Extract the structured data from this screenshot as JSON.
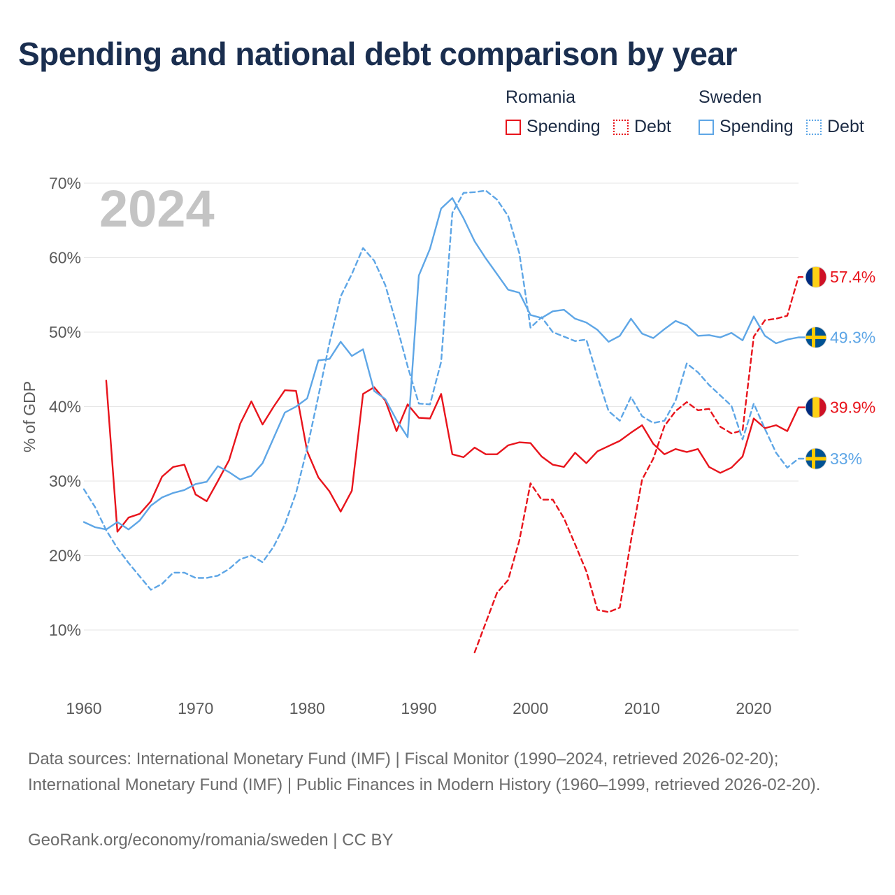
{
  "title": "Spending and national debt comparison by year",
  "legend": {
    "groups": [
      {
        "country": "Romania",
        "color": "#e8141c",
        "items": [
          {
            "label": "Spending",
            "style": "solid"
          },
          {
            "label": "Debt",
            "style": "dashed"
          }
        ]
      },
      {
        "country": "Sweden",
        "color": "#5ea6e6",
        "items": [
          {
            "label": "Spending",
            "style": "solid"
          },
          {
            "label": "Debt",
            "style": "dashed"
          }
        ]
      }
    ]
  },
  "chart_data": {
    "type": "line",
    "year_label": "2024",
    "ylabel": "% of GDP",
    "xlim": [
      1957,
      2027
    ],
    "ylim": [
      1,
      71
    ],
    "x_ticks": [
      1960,
      1970,
      1980,
      1990,
      2000,
      2010,
      2020
    ],
    "x_tick_labels": [
      "1960",
      "1970",
      "1980",
      "1990",
      "2000",
      "2010",
      "2020"
    ],
    "y_ticks": [
      10,
      20,
      30,
      40,
      50,
      60,
      70
    ],
    "y_tick_labels": [
      "10%",
      "20%",
      "30%",
      "40%",
      "50%",
      "60%",
      "70%"
    ],
    "grid": true,
    "series": [
      {
        "name": "Romania Spending",
        "country": "Romania",
        "measure": "Spending",
        "style": "solid",
        "color": "#e8141c",
        "flag": "romania",
        "end_label": "39.9%",
        "end_value": 39.9,
        "x": [
          1962,
          1963,
          1964,
          1965,
          1966,
          1967,
          1968,
          1969,
          1970,
          1971,
          1972,
          1973,
          1974,
          1975,
          1976,
          1977,
          1978,
          1979,
          1980,
          1981,
          1982,
          1983,
          1984,
          1985,
          1986,
          1987,
          1988,
          1989,
          1990,
          1991,
          1992,
          1993,
          1994,
          1995,
          1996,
          1997,
          1998,
          1999,
          2000,
          2001,
          2002,
          2003,
          2004,
          2005,
          2006,
          2007,
          2008,
          2009,
          2010,
          2011,
          2012,
          2013,
          2014,
          2015,
          2016,
          2017,
          2018,
          2019,
          2020,
          2021,
          2022,
          2023,
          2024,
          2025
        ],
        "y": [
          43.5,
          23.2,
          25.1,
          25.6,
          27.3,
          30.6,
          31.9,
          32.2,
          28.2,
          27.3,
          30.0,
          32.8,
          37.7,
          40.7,
          37.6,
          40.0,
          42.2,
          42.1,
          34.0,
          30.5,
          28.6,
          25.9,
          28.7,
          41.7,
          42.6,
          40.8,
          36.7,
          40.3,
          38.5,
          38.4,
          41.7,
          33.6,
          33.2,
          34.5,
          33.6,
          33.6,
          34.8,
          35.2,
          35.1,
          33.3,
          32.2,
          31.9,
          33.8,
          32.4,
          34.0,
          34.7,
          35.4,
          36.5,
          37.5,
          35.0,
          33.6,
          34.3,
          33.9,
          34.3,
          31.9,
          31.1,
          31.8,
          33.3,
          38.4,
          37.1,
          37.5,
          36.7,
          39.9,
          39.9
        ]
      },
      {
        "name": "Romania Debt",
        "country": "Romania",
        "measure": "Debt",
        "style": "dashed",
        "color": "#e8141c",
        "flag": "romania",
        "end_label": "57.4%",
        "end_value": 57.4,
        "x": [
          1995,
          1996,
          1997,
          1998,
          1999,
          2000,
          2001,
          2002,
          2003,
          2004,
          2005,
          2006,
          2007,
          2008,
          2009,
          2010,
          2011,
          2012,
          2013,
          2014,
          2015,
          2016,
          2017,
          2018,
          2019,
          2020,
          2021,
          2022,
          2023,
          2024,
          2025
        ],
        "y": [
          7.0,
          11.0,
          15.0,
          16.7,
          22.0,
          29.7,
          27.5,
          27.5,
          25.0,
          21.5,
          17.9,
          12.7,
          12.4,
          13.0,
          22.0,
          30.2,
          33.0,
          37.4,
          39.4,
          40.6,
          39.5,
          39.7,
          37.3,
          36.4,
          36.8,
          49.4,
          51.6,
          51.8,
          52.2,
          57.4,
          57.4
        ]
      },
      {
        "name": "Sweden Spending",
        "country": "Sweden",
        "measure": "Spending",
        "style": "solid",
        "color": "#5ea6e6",
        "flag": "sweden",
        "end_label": "49.3%",
        "end_value": 49.3,
        "x": [
          1960,
          1961,
          1962,
          1963,
          1964,
          1965,
          1966,
          1967,
          1968,
          1969,
          1970,
          1971,
          1972,
          1973,
          1974,
          1975,
          1976,
          1977,
          1978,
          1979,
          1980,
          1981,
          1982,
          1983,
          1984,
          1985,
          1986,
          1987,
          1988,
          1989,
          1990,
          1991,
          1992,
          1993,
          1994,
          1995,
          1996,
          1997,
          1998,
          1999,
          2000,
          2001,
          2002,
          2003,
          2004,
          2005,
          2006,
          2007,
          2008,
          2009,
          2010,
          2011,
          2012,
          2013,
          2014,
          2015,
          2016,
          2017,
          2018,
          2019,
          2020,
          2021,
          2022,
          2023,
          2024,
          2025
        ],
        "y": [
          24.5,
          23.8,
          23.5,
          24.5,
          23.5,
          24.7,
          26.7,
          27.8,
          28.4,
          28.8,
          29.6,
          29.9,
          32.0,
          31.2,
          30.2,
          30.7,
          32.4,
          35.8,
          39.2,
          40.0,
          41.1,
          46.2,
          46.4,
          48.7,
          46.8,
          47.7,
          42.1,
          41.0,
          38.2,
          35.9,
          57.6,
          61.2,
          66.6,
          68.0,
          65.3,
          62.2,
          59.9,
          57.8,
          55.7,
          55.3,
          52.3,
          51.9,
          52.8,
          53.0,
          51.8,
          51.3,
          50.3,
          48.7,
          49.5,
          51.8,
          49.8,
          49.2,
          50.4,
          51.5,
          50.9,
          49.5,
          49.6,
          49.3,
          49.9,
          48.9,
          52.1,
          49.5,
          48.5,
          49.0,
          49.3,
          49.3
        ]
      },
      {
        "name": "Sweden Debt",
        "country": "Sweden",
        "measure": "Debt",
        "style": "dashed",
        "color": "#5ea6e6",
        "flag": "sweden",
        "end_label": "33%",
        "end_value": 33.0,
        "x": [
          1960,
          1961,
          1962,
          1963,
          1964,
          1965,
          1966,
          1967,
          1968,
          1969,
          1970,
          1971,
          1972,
          1973,
          1974,
          1975,
          1976,
          1977,
          1978,
          1979,
          1980,
          1981,
          1982,
          1983,
          1984,
          1985,
          1986,
          1987,
          1988,
          1989,
          1990,
          1991,
          1992,
          1993,
          1994,
          1995,
          1996,
          1997,
          1998,
          1999,
          2000,
          2001,
          2002,
          2003,
          2004,
          2005,
          2006,
          2007,
          2008,
          2009,
          2010,
          2011,
          2012,
          2013,
          2014,
          2015,
          2016,
          2017,
          2018,
          2019,
          2020,
          2021,
          2022,
          2023,
          2024,
          2025
        ],
        "y": [
          28.9,
          26.5,
          23.4,
          21.0,
          19.0,
          17.2,
          15.4,
          16.2,
          17.7,
          17.7,
          17.0,
          17.0,
          17.3,
          18.2,
          19.5,
          20.0,
          19.1,
          21.2,
          24.2,
          28.4,
          34.4,
          41.4,
          48.6,
          54.8,
          57.8,
          61.3,
          59.6,
          56.3,
          51.0,
          45.4,
          40.4,
          40.3,
          46.0,
          66.0,
          68.7,
          68.8,
          69.0,
          67.8,
          65.6,
          60.6,
          50.6,
          52.0,
          50.0,
          49.4,
          48.8,
          49.0,
          44.0,
          39.4,
          38.1,
          41.3,
          38.7,
          37.8,
          38.1,
          40.8,
          45.8,
          44.6,
          42.9,
          41.5,
          40.1,
          35.6,
          40.4,
          37.0,
          33.8,
          31.8,
          33.0,
          33.0
        ]
      }
    ]
  },
  "footer": {
    "sources": "Data sources: International Monetary Fund (IMF) | Fiscal Monitor (1990–2024, retrieved 2026-02-20); International Monetary Fund (IMF) | Public Finances in Modern History (1960–1999, retrieved 2026-02-20).",
    "credit": "GeoRank.org/economy/romania/sweden | CC BY"
  }
}
